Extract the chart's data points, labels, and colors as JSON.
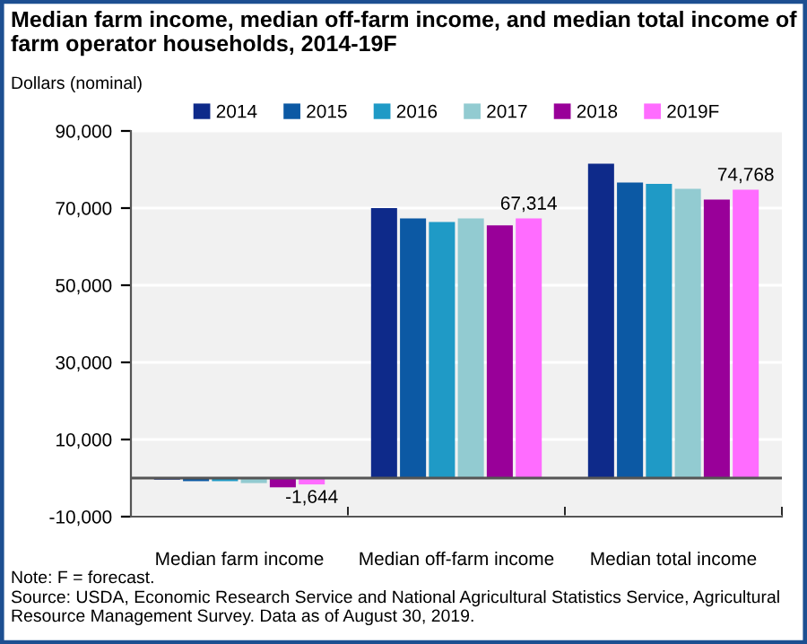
{
  "chart_data": {
    "type": "bar",
    "title": "Median farm income, median off-farm income, and median total income of farm operator households, 2014-19F",
    "ylabel": "Dollars (nominal)",
    "categories": [
      "Median farm income",
      "Median off-farm income",
      "Median total income"
    ],
    "series": [
      {
        "name": "2014",
        "color": "#0e2a8a",
        "values": [
          -400,
          70000,
          81500
        ]
      },
      {
        "name": "2015",
        "color": "#0c59a4",
        "values": [
          -800,
          67300,
          76600
        ]
      },
      {
        "name": "2016",
        "color": "#1f9ac6",
        "values": [
          -800,
          66400,
          76300
        ]
      },
      {
        "name": "2017",
        "color": "#92cbd1",
        "values": [
          -1300,
          67300,
          75000
        ]
      },
      {
        "name": "2018",
        "color": "#990099",
        "values": [
          -2400,
          65500,
          72200
        ]
      },
      {
        "name": "2019F",
        "color": "#ff6cff",
        "values": [
          -1644,
          67314,
          74768
        ],
        "value_labels": [
          "-1,644",
          "67,314",
          "74,768"
        ]
      }
    ],
    "ylim": [
      -10000,
      90000
    ],
    "yticks": [
      {
        "value": -10000,
        "label": "-10,000"
      },
      {
        "value": 10000,
        "label": "10,000"
      },
      {
        "value": 30000,
        "label": "30,000"
      },
      {
        "value": 50000,
        "label": "50,000"
      },
      {
        "value": 70000,
        "label": "70,000"
      },
      {
        "value": 90000,
        "label": "90,000"
      }
    ],
    "grid": "y",
    "legend": "top",
    "ref_lines": [
      {
        "axis": "y",
        "value": 0,
        "color": "#555555"
      }
    ],
    "annotations": [
      "Note: F = forecast.",
      "Source: USDA, Economic Research Service and National Agricultural Statistics Service, Agricultural Resource Management Survey. Data as of August 30, 2019."
    ]
  }
}
